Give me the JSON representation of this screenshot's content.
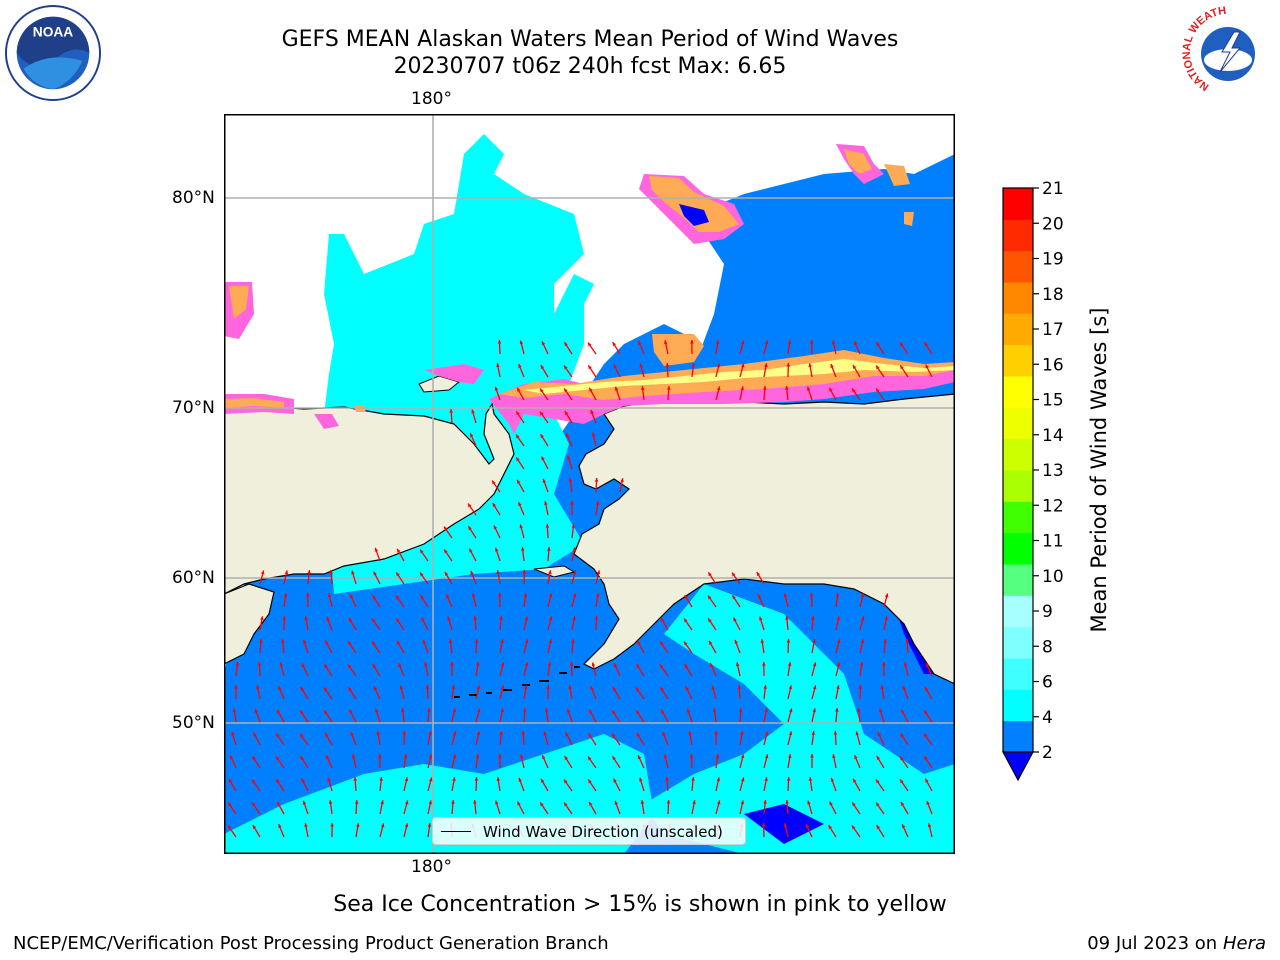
{
  "header": {
    "title_line1": "GEFS MEAN Alaskan Waters Mean Period of Wind Waves",
    "title_line2": "20230707 t06z 240h fcst   Max: 6.65"
  },
  "logos": {
    "noaa_text": "NOAA",
    "nws_ring_text": "NATIONAL WEATHER SERVICE"
  },
  "axes": {
    "lon_top": "180°",
    "lon_bottom": "180°",
    "lat_labels": [
      "80°N",
      "70°N",
      "60°N",
      "50°N"
    ]
  },
  "legend": {
    "label": "Wind Wave Direction (unscaled)"
  },
  "colorbar": {
    "label": "Mean Period of Wind Waves [s]",
    "ticks": [
      "2",
      "4",
      "6",
      "8",
      "9",
      "10",
      "11",
      "12",
      "13",
      "14",
      "15",
      "16",
      "17",
      "18",
      "19",
      "20",
      "21"
    ],
    "colors": [
      "#0080ff",
      "#00ffff",
      "#40ffff",
      "#80ffff",
      "#a8ffff",
      "#55ff80",
      "#00ff00",
      "#40ff00",
      "#aaff00",
      "#ccff00",
      "#eeff00",
      "#ffff00",
      "#ffd000",
      "#ffaa00",
      "#ff8800",
      "#ff5500",
      "#ff2a00",
      "#ff0000"
    ],
    "under_color": "#0000ff"
  },
  "colors": {
    "land": "#efefdc",
    "ice_pink": "#ff66dd",
    "ice_orange": "#ffaa55",
    "ice_yellow": "#ffff88",
    "ocean_low": "#0080ff",
    "ocean_mid": "#00ffff",
    "ocean_deep": "#0000ff",
    "arrow": "#ff0000"
  },
  "caption": "Sea Ice Concentration > 15% is shown in pink to yellow",
  "footer": {
    "left": "NCEP/EMC/Verification Post Processing Product Generation Branch",
    "right_prefix": "09 Jul 2023 on ",
    "right_host": "Hera"
  }
}
